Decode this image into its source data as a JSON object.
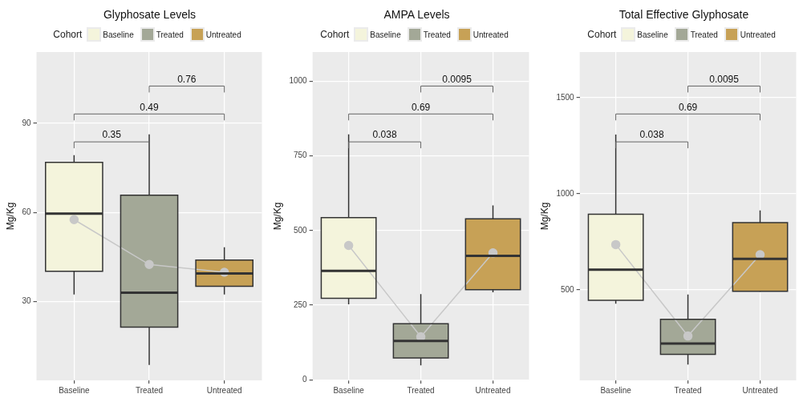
{
  "chart_data": [
    {
      "type": "box",
      "title": "Glyphosate Levels",
      "ylabel": "Mg/Kg",
      "legend_title": "Cohort",
      "legend": "top",
      "grid": true,
      "categories": [
        "Baseline",
        "Treated",
        "Untreated"
      ],
      "ylim": [
        3.5,
        114
      ],
      "yticks": [
        30,
        60,
        90
      ],
      "series": [
        {
          "name": "Baseline",
          "color": "#f4f4dc",
          "boxes": [
            {
              "low": 32.4,
              "q1": 40.2,
              "median": 59.6,
              "q3": 76.9,
              "high": 79.3
            },
            null,
            null
          ]
        },
        {
          "name": "Treated",
          "color": "#a3a897",
          "boxes": [
            null,
            {
              "low": 8.7,
              "q1": 21.4,
              "median": 33.0,
              "q3": 65.8,
              "high": 86.3
            },
            null
          ]
        },
        {
          "name": "Untreated",
          "color": "#c7a156",
          "boxes": [
            null,
            null,
            {
              "low": 32.4,
              "q1": 35.2,
              "median": 39.5,
              "q3": 44.0,
              "high": 48.3
            }
          ]
        },
        {
          "type": "line",
          "color": "#c8c8c8",
          "marker": "circle",
          "values": [
            57.6,
            42.5,
            39.9
          ]
        }
      ],
      "annotations": [
        "0.35",
        "0.49",
        "0.76"
      ]
    },
    {
      "type": "box",
      "title": "AMPA Levels",
      "ylabel": "Mg/Kg",
      "legend_title": "Cohort",
      "legend": "top",
      "grid": true,
      "categories": [
        "Baseline",
        "Treated",
        "Untreated"
      ],
      "ylim": [
        -2,
        1098
      ],
      "yticks": [
        0,
        250,
        500,
        750,
        1000
      ],
      "series": [
        {
          "name": "Baseline",
          "color": "#f4f4dc",
          "boxes": [
            {
              "low": 253,
              "q1": 273,
              "median": 365,
              "q3": 543,
              "high": 822
            },
            null,
            null
          ]
        },
        {
          "name": "Treated",
          "color": "#a3a897",
          "boxes": [
            null,
            {
              "low": 48,
              "q1": 73,
              "median": 130,
              "q3": 188,
              "high": 287
            },
            null
          ]
        },
        {
          "name": "Untreated",
          "color": "#c7a156",
          "boxes": [
            null,
            null,
            {
              "low": 293,
              "q1": 302,
              "median": 415,
              "q3": 539,
              "high": 584
            }
          ]
        },
        {
          "type": "line",
          "color": "#c8c8c8",
          "marker": "circle",
          "values": [
            450,
            144,
            425
          ]
        }
      ],
      "annotations": [
        "0.038",
        "0.69",
        "0.0095"
      ]
    },
    {
      "type": "box",
      "title": "Total Effective Glyphosate",
      "ylabel": "Mg/Kg",
      "legend_title": "Cohort",
      "legend": "top",
      "grid": true,
      "categories": [
        "Baseline",
        "Treated",
        "Untreated"
      ],
      "ylim": [
        28,
        1737
      ],
      "yticks": [
        500,
        1000,
        1500
      ],
      "series": [
        {
          "name": "Baseline",
          "color": "#f4f4dc",
          "boxes": [
            {
              "low": 427,
              "q1": 445,
              "median": 604,
              "q3": 893,
              "high": 1308
            },
            null,
            null
          ]
        },
        {
          "name": "Treated",
          "color": "#a3a897",
          "boxes": [
            null,
            {
              "low": 110,
              "q1": 163,
              "median": 220,
              "q3": 346,
              "high": 475
            },
            null
          ]
        },
        {
          "name": "Untreated",
          "color": "#c7a156",
          "boxes": [
            null,
            null,
            {
              "low": 490,
              "q1": 492,
              "median": 661,
              "q3": 849,
              "high": 913
            }
          ]
        },
        {
          "type": "line",
          "color": "#c8c8c8",
          "marker": "circle",
          "values": [
            735,
            259,
            682
          ]
        }
      ],
      "annotations": [
        "0.038",
        "0.69",
        "0.0095"
      ]
    }
  ]
}
